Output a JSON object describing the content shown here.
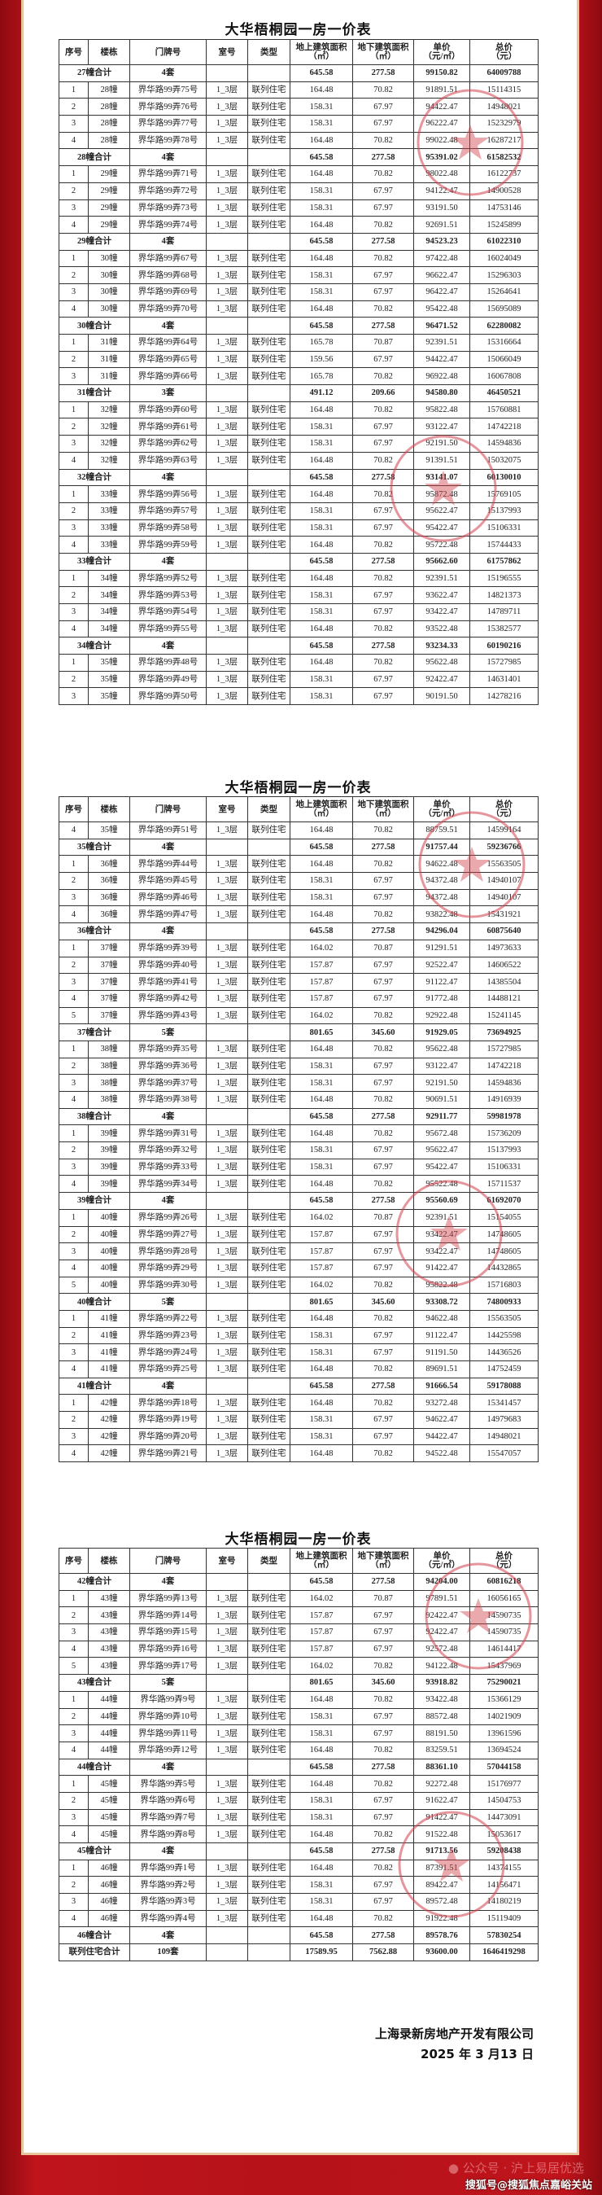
{
  "title": "大华梧桐园一房一价表",
  "headers": [
    [
      "序号",
      ""
    ],
    [
      "楼栋",
      ""
    ],
    [
      "门牌号",
      ""
    ],
    [
      "室号",
      ""
    ],
    [
      "类型",
      ""
    ],
    [
      "地上建筑面积",
      "（㎡）"
    ],
    [
      "地下建筑面积",
      "（㎡）"
    ],
    [
      "单价",
      "（元/㎡）"
    ],
    [
      "总价",
      "（元）"
    ]
  ],
  "tables": [
    {
      "rows": [
        [
          "27幢合计",
          "4套",
          "645.58",
          "277.58",
          "99150.82",
          "64009788"
        ],
        [
          "1",
          "28幢",
          "界华路99弄75号",
          "1_3层",
          "联列住宅",
          "164.48",
          "70.82",
          "91891.51",
          "15114315"
        ],
        [
          "2",
          "28幢",
          "界华路99弄76号",
          "1_3层",
          "联列住宅",
          "158.31",
          "67.97",
          "94422.47",
          "14948021"
        ],
        [
          "3",
          "28幢",
          "界华路99弄77号",
          "1_3层",
          "联列住宅",
          "158.31",
          "67.97",
          "96222.47",
          "15232979"
        ],
        [
          "4",
          "28幢",
          "界华路99弄78号",
          "1_3层",
          "联列住宅",
          "164.48",
          "70.82",
          "99022.48",
          "16287217"
        ],
        [
          "28幢合计",
          "4套",
          "645.58",
          "277.58",
          "95391.02",
          "61582532"
        ],
        [
          "1",
          "29幢",
          "界华路99弄71号",
          "1_3层",
          "联列住宅",
          "164.48",
          "70.82",
          "98022.48",
          "16122737"
        ],
        [
          "2",
          "29幢",
          "界华路99弄72号",
          "1_3层",
          "联列住宅",
          "158.31",
          "67.97",
          "94122.47",
          "14900528"
        ],
        [
          "3",
          "29幢",
          "界华路99弄73号",
          "1_3层",
          "联列住宅",
          "158.31",
          "67.97",
          "93191.50",
          "14753146"
        ],
        [
          "4",
          "29幢",
          "界华路99弄74号",
          "1_3层",
          "联列住宅",
          "164.48",
          "70.82",
          "92691.51",
          "15245899"
        ],
        [
          "29幢合计",
          "4套",
          "645.58",
          "277.58",
          "94523.23",
          "61022310"
        ],
        [
          "1",
          "30幢",
          "界华路99弄67号",
          "1_3层",
          "联列住宅",
          "164.48",
          "70.82",
          "97422.48",
          "16024049"
        ],
        [
          "2",
          "30幢",
          "界华路99弄68号",
          "1_3层",
          "联列住宅",
          "158.31",
          "67.97",
          "96622.47",
          "15296303"
        ],
        [
          "3",
          "30幢",
          "界华路99弄69号",
          "1_3层",
          "联列住宅",
          "158.31",
          "67.97",
          "96422.47",
          "15264641"
        ],
        [
          "4",
          "30幢",
          "界华路99弄70号",
          "1_3层",
          "联列住宅",
          "164.48",
          "70.82",
          "95422.48",
          "15695089"
        ],
        [
          "30幢合计",
          "4套",
          "645.58",
          "277.58",
          "96471.52",
          "62280082"
        ],
        [
          "1",
          "31幢",
          "界华路99弄64号",
          "1_3层",
          "联列住宅",
          "165.78",
          "70.87",
          "92391.51",
          "15316664"
        ],
        [
          "2",
          "31幢",
          "界华路99弄65号",
          "1_3层",
          "联列住宅",
          "159.56",
          "67.97",
          "94422.47",
          "15066049"
        ],
        [
          "3",
          "31幢",
          "界华路99弄66号",
          "1_3层",
          "联列住宅",
          "165.78",
          "70.82",
          "96922.48",
          "16067808"
        ],
        [
          "31幢合计",
          "3套",
          "491.12",
          "209.66",
          "94580.80",
          "46450521"
        ],
        [
          "1",
          "32幢",
          "界华路99弄60号",
          "1_3层",
          "联列住宅",
          "164.48",
          "70.82",
          "95822.48",
          "15760881"
        ],
        [
          "2",
          "32幢",
          "界华路99弄61号",
          "1_3层",
          "联列住宅",
          "158.31",
          "67.97",
          "93122.47",
          "14742218"
        ],
        [
          "3",
          "32幢",
          "界华路99弄62号",
          "1_3层",
          "联列住宅",
          "158.31",
          "67.97",
          "92191.50",
          "14594836"
        ],
        [
          "4",
          "32幢",
          "界华路99弄63号",
          "1_3层",
          "联列住宅",
          "164.48",
          "70.82",
          "91391.51",
          "15032075"
        ],
        [
          "32幢合计",
          "4套",
          "645.58",
          "277.58",
          "93141.07",
          "60130010"
        ],
        [
          "1",
          "33幢",
          "界华路99弄56号",
          "1_3层",
          "联列住宅",
          "164.48",
          "70.82",
          "95872.48",
          "15769105"
        ],
        [
          "2",
          "33幢",
          "界华路99弄57号",
          "1_3层",
          "联列住宅",
          "158.31",
          "67.97",
          "95622.47",
          "15137993"
        ],
        [
          "3",
          "33幢",
          "界华路99弄58号",
          "1_3层",
          "联列住宅",
          "158.31",
          "67.97",
          "95422.47",
          "15106331"
        ],
        [
          "4",
          "33幢",
          "界华路99弄59号",
          "1_3层",
          "联列住宅",
          "164.48",
          "70.82",
          "95722.48",
          "15744433"
        ],
        [
          "33幢合计",
          "4套",
          "645.58",
          "277.58",
          "95662.60",
          "61757862"
        ],
        [
          "1",
          "34幢",
          "界华路99弄52号",
          "1_3层",
          "联列住宅",
          "164.48",
          "70.82",
          "92391.51",
          "15196555"
        ],
        [
          "2",
          "34幢",
          "界华路99弄53号",
          "1_3层",
          "联列住宅",
          "158.31",
          "67.97",
          "93622.47",
          "14821373"
        ],
        [
          "3",
          "34幢",
          "界华路99弄54号",
          "1_3层",
          "联列住宅",
          "158.31",
          "67.97",
          "93422.47",
          "14789711"
        ],
        [
          "4",
          "34幢",
          "界华路99弄55号",
          "1_3层",
          "联列住宅",
          "164.48",
          "70.82",
          "93522.48",
          "15382577"
        ],
        [
          "34幢合计",
          "4套",
          "645.58",
          "277.58",
          "93234.33",
          "60190216"
        ],
        [
          "1",
          "35幢",
          "界华路99弄48号",
          "1_3层",
          "联列住宅",
          "164.48",
          "70.82",
          "95622.48",
          "15727985"
        ],
        [
          "2",
          "35幢",
          "界华路99弄49号",
          "1_3层",
          "联列住宅",
          "158.31",
          "67.97",
          "92422.47",
          "14631401"
        ],
        [
          "3",
          "35幢",
          "界华路99弄50号",
          "1_3层",
          "联列住宅",
          "158.31",
          "67.97",
          "90191.50",
          "14278216"
        ]
      ]
    },
    {
      "rows": [
        [
          "4",
          "35幢",
          "界华路99弄51号",
          "1_3层",
          "联列住宅",
          "164.48",
          "70.82",
          "88759.51",
          "14599164"
        ],
        [
          "35幢合计",
          "4套",
          "645.58",
          "277.58",
          "91757.44",
          "59236766"
        ],
        [
          "1",
          "36幢",
          "界华路99弄44号",
          "1_3层",
          "联列住宅",
          "164.48",
          "70.82",
          "94622.48",
          "15563505"
        ],
        [
          "2",
          "36幢",
          "界华路99弄45号",
          "1_3层",
          "联列住宅",
          "158.31",
          "67.97",
          "94372.48",
          "14940107"
        ],
        [
          "3",
          "36幢",
          "界华路99弄46号",
          "1_3层",
          "联列住宅",
          "158.31",
          "67.97",
          "94372.48",
          "14940107"
        ],
        [
          "4",
          "36幢",
          "界华路99弄47号",
          "1_3层",
          "联列住宅",
          "164.48",
          "70.82",
          "93822.48",
          "15431921"
        ],
        [
          "36幢合计",
          "4套",
          "645.58",
          "277.58",
          "94296.04",
          "60875640"
        ],
        [
          "1",
          "37幢",
          "界华路99弄39号",
          "1_3层",
          "联列住宅",
          "164.02",
          "70.87",
          "91291.51",
          "14973633"
        ],
        [
          "2",
          "37幢",
          "界华路99弄40号",
          "1_3层",
          "联列住宅",
          "157.87",
          "67.97",
          "92522.47",
          "14606522"
        ],
        [
          "3",
          "37幢",
          "界华路99弄41号",
          "1_3层",
          "联列住宅",
          "157.87",
          "67.97",
          "91122.47",
          "14385504"
        ],
        [
          "4",
          "37幢",
          "界华路99弄42号",
          "1_3层",
          "联列住宅",
          "157.87",
          "67.97",
          "91772.48",
          "14488121"
        ],
        [
          "5",
          "37幢",
          "界华路99弄43号",
          "1_3层",
          "联列住宅",
          "164.02",
          "70.82",
          "92922.48",
          "15241145"
        ],
        [
          "37幢合计",
          "5套",
          "801.65",
          "345.60",
          "91929.05",
          "73694925"
        ],
        [
          "1",
          "38幢",
          "界华路99弄35号",
          "1_3层",
          "联列住宅",
          "164.48",
          "70.82",
          "95622.48",
          "15727985"
        ],
        [
          "2",
          "38幢",
          "界华路99弄36号",
          "1_3层",
          "联列住宅",
          "158.31",
          "67.97",
          "93122.47",
          "14742218"
        ],
        [
          "3",
          "38幢",
          "界华路99弄37号",
          "1_3层",
          "联列住宅",
          "158.31",
          "67.97",
          "92191.50",
          "14594836"
        ],
        [
          "4",
          "38幢",
          "界华路99弄38号",
          "1_3层",
          "联列住宅",
          "164.48",
          "70.82",
          "90691.51",
          "14916939"
        ],
        [
          "38幢合计",
          "4套",
          "645.58",
          "277.58",
          "92911.77",
          "59981978"
        ],
        [
          "1",
          "39幢",
          "界华路99弄31号",
          "1_3层",
          "联列住宅",
          "164.48",
          "70.82",
          "95672.48",
          "15736209"
        ],
        [
          "2",
          "39幢",
          "界华路99弄32号",
          "1_3层",
          "联列住宅",
          "158.31",
          "67.97",
          "95622.47",
          "15137993"
        ],
        [
          "3",
          "39幢",
          "界华路99弄33号",
          "1_3层",
          "联列住宅",
          "158.31",
          "67.97",
          "95422.47",
          "15106331"
        ],
        [
          "4",
          "39幢",
          "界华路99弄34号",
          "1_3层",
          "联列住宅",
          "164.48",
          "70.82",
          "95522.48",
          "15711537"
        ],
        [
          "39幢合计",
          "4套",
          "645.58",
          "277.58",
          "95560.69",
          "61692070"
        ],
        [
          "1",
          "40幢",
          "界华路99弄26号",
          "1_3层",
          "联列住宅",
          "164.02",
          "70.87",
          "92391.51",
          "15154055"
        ],
        [
          "2",
          "40幢",
          "界华路99弄27号",
          "1_3层",
          "联列住宅",
          "157.87",
          "67.97",
          "93422.47",
          "14748605"
        ],
        [
          "3",
          "40幢",
          "界华路99弄28号",
          "1_3层",
          "联列住宅",
          "157.87",
          "67.97",
          "93422.47",
          "14748605"
        ],
        [
          "4",
          "40幢",
          "界华路99弄29号",
          "1_3层",
          "联列住宅",
          "157.87",
          "67.97",
          "91422.47",
          "14432865"
        ],
        [
          "5",
          "40幢",
          "界华路99弄30号",
          "1_3层",
          "联列住宅",
          "164.02",
          "70.82",
          "95822.48",
          "15716803"
        ],
        [
          "40幢合计",
          "5套",
          "801.65",
          "345.60",
          "93308.72",
          "74800933"
        ],
        [
          "1",
          "41幢",
          "界华路99弄22号",
          "1_3层",
          "联列住宅",
          "164.48",
          "70.82",
          "94622.48",
          "15563505"
        ],
        [
          "2",
          "41幢",
          "界华路99弄23号",
          "1_3层",
          "联列住宅",
          "158.31",
          "67.97",
          "91122.47",
          "14425598"
        ],
        [
          "3",
          "41幢",
          "界华路99弄24号",
          "1_3层",
          "联列住宅",
          "158.31",
          "67.97",
          "91191.50",
          "14436526"
        ],
        [
          "4",
          "41幢",
          "界华路99弄25号",
          "1_3层",
          "联列住宅",
          "164.48",
          "70.82",
          "89691.51",
          "14752459"
        ],
        [
          "41幢合计",
          "4套",
          "645.58",
          "277.58",
          "91666.54",
          "59178088"
        ],
        [
          "1",
          "42幢",
          "界华路99弄18号",
          "1_3层",
          "联列住宅",
          "164.48",
          "70.82",
          "93272.48",
          "15341457"
        ],
        [
          "2",
          "42幢",
          "界华路99弄19号",
          "1_3层",
          "联列住宅",
          "158.31",
          "67.97",
          "94622.47",
          "14979683"
        ],
        [
          "3",
          "42幢",
          "界华路99弄20号",
          "1_3层",
          "联列住宅",
          "158.31",
          "67.97",
          "94422.47",
          "14948021"
        ],
        [
          "4",
          "42幢",
          "界华路99弄21号",
          "1_3层",
          "联列住宅",
          "164.48",
          "70.82",
          "94522.48",
          "15547057"
        ]
      ]
    },
    {
      "rows": [
        [
          "42幢合计",
          "4套",
          "645.58",
          "277.58",
          "94204.00",
          "60816218"
        ],
        [
          "1",
          "43幢",
          "界华路99弄13号",
          "1_3层",
          "联列住宅",
          "164.02",
          "70.87",
          "97891.51",
          "16056165"
        ],
        [
          "2",
          "43幢",
          "界华路99弄14号",
          "1_3层",
          "联列住宅",
          "157.87",
          "67.97",
          "92422.47",
          "14590735"
        ],
        [
          "3",
          "43幢",
          "界华路99弄15号",
          "1_3层",
          "联列住宅",
          "157.87",
          "67.97",
          "92422.47",
          "14590735"
        ],
        [
          "4",
          "43幢",
          "界华路99弄16号",
          "1_3层",
          "联列住宅",
          "157.87",
          "67.97",
          "92572.48",
          "14614417"
        ],
        [
          "5",
          "43幢",
          "界华路99弄17号",
          "1_3层",
          "联列住宅",
          "164.02",
          "70.82",
          "94122.48",
          "15437969"
        ],
        [
          "43幢合计",
          "5套",
          "801.65",
          "345.60",
          "93918.82",
          "75290021"
        ],
        [
          "1",
          "44幢",
          "界华路99弄9号",
          "1_3层",
          "联列住宅",
          "164.48",
          "70.82",
          "93422.48",
          "15366129"
        ],
        [
          "2",
          "44幢",
          "界华路99弄10号",
          "1_3层",
          "联列住宅",
          "158.31",
          "67.97",
          "88572.48",
          "14021909"
        ],
        [
          "3",
          "44幢",
          "界华路99弄11号",
          "1_3层",
          "联列住宅",
          "158.31",
          "67.97",
          "88191.50",
          "13961596"
        ],
        [
          "4",
          "44幢",
          "界华路99弄12号",
          "1_3层",
          "联列住宅",
          "164.48",
          "70.82",
          "83259.51",
          "13694524"
        ],
        [
          "44幢合计",
          "4套",
          "645.58",
          "277.58",
          "88361.10",
          "57044158"
        ],
        [
          "1",
          "45幢",
          "界华路99弄5号",
          "1_3层",
          "联列住宅",
          "164.48",
          "70.82",
          "92272.48",
          "15176977"
        ],
        [
          "2",
          "45幢",
          "界华路99弄6号",
          "1_3层",
          "联列住宅",
          "158.31",
          "67.97",
          "91622.47",
          "14504753"
        ],
        [
          "3",
          "45幢",
          "界华路99弄7号",
          "1_3层",
          "联列住宅",
          "158.31",
          "67.97",
          "91422.47",
          "14473091"
        ],
        [
          "4",
          "45幢",
          "界华路99弄8号",
          "1_3层",
          "联列住宅",
          "164.48",
          "70.82",
          "91522.48",
          "15053617"
        ],
        [
          "45幢合计",
          "4套",
          "645.58",
          "277.58",
          "91713.56",
          "59208438"
        ],
        [
          "1",
          "46幢",
          "界华路99弄1号",
          "1_3层",
          "联列住宅",
          "164.48",
          "70.82",
          "87391.51",
          "14374155"
        ],
        [
          "2",
          "46幢",
          "界华路99弄2号",
          "1_3层",
          "联列住宅",
          "158.31",
          "67.97",
          "89422.47",
          "14156471"
        ],
        [
          "3",
          "46幢",
          "界华路99弄3号",
          "1_3层",
          "联列住宅",
          "158.31",
          "67.97",
          "89572.48",
          "14180219"
        ],
        [
          "4",
          "46幢",
          "界华路99弄4号",
          "1_3层",
          "联列住宅",
          "164.48",
          "70.82",
          "91922.48",
          "15119409"
        ],
        [
          "46幢合计",
          "4套",
          "645.58",
          "277.58",
          "89578.76",
          "57830254"
        ],
        [
          "联列住宅合计",
          "109套",
          "17589.95",
          "7562.88",
          "93600.00",
          "1646419298"
        ]
      ]
    }
  ],
  "footer": {
    "company": "上海录新房地产开发有限公司",
    "date": "2025 年 3 月13 日"
  },
  "watermarks": {
    "wechat": "公众号 · 沪上易居优选",
    "sohu": "搜狐号@搜狐焦点嘉峪关站"
  },
  "colors": {
    "frame": "#b5121a",
    "stamp": "#d0404a",
    "border": "#e6c79d"
  }
}
